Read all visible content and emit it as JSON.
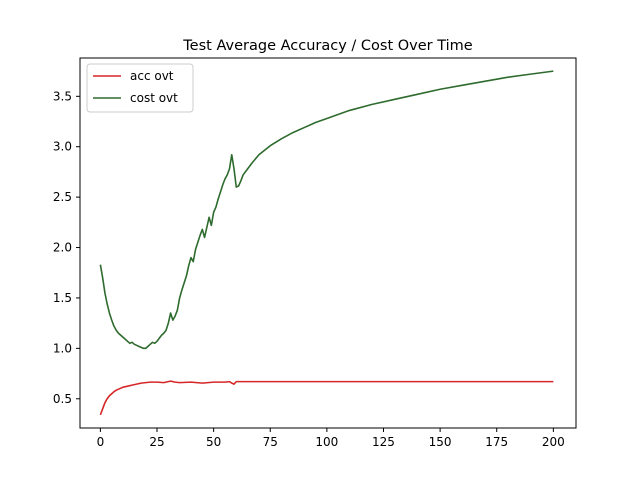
{
  "chart_data": {
    "type": "line",
    "title": "Test Average Accuracy / Cost Over Time",
    "xlabel": "",
    "ylabel": "",
    "xlim": [
      -9,
      210
    ],
    "ylim": [
      0.21,
      3.88
    ],
    "xticks": [
      0,
      25,
      50,
      75,
      100,
      125,
      150,
      175,
      200
    ],
    "yticks": [
      0.5,
      1.0,
      1.5,
      2.0,
      2.5,
      3.0,
      3.5
    ],
    "ytick_labels": [
      "0.5",
      "1.0",
      "1.5",
      "2.0",
      "2.5",
      "3.0",
      "3.5"
    ],
    "grid": false,
    "legend_position": "top-left",
    "series": [
      {
        "name": "acc ovt",
        "color": "#d62728",
        "points": [
          [
            0,
            0.34
          ],
          [
            1,
            0.4
          ],
          [
            2,
            0.46
          ],
          [
            3,
            0.5
          ],
          [
            4,
            0.53
          ],
          [
            5,
            0.55
          ],
          [
            6,
            0.57
          ],
          [
            7,
            0.585
          ],
          [
            8,
            0.595
          ],
          [
            9,
            0.605
          ],
          [
            10,
            0.615
          ],
          [
            12,
            0.625
          ],
          [
            14,
            0.635
          ],
          [
            16,
            0.645
          ],
          [
            18,
            0.655
          ],
          [
            20,
            0.66
          ],
          [
            22,
            0.665
          ],
          [
            25,
            0.665
          ],
          [
            28,
            0.66
          ],
          [
            31,
            0.675
          ],
          [
            33,
            0.665
          ],
          [
            35,
            0.66
          ],
          [
            40,
            0.665
          ],
          [
            45,
            0.655
          ],
          [
            50,
            0.665
          ],
          [
            55,
            0.665
          ],
          [
            57,
            0.67
          ],
          [
            58,
            0.655
          ],
          [
            59,
            0.645
          ],
          [
            60,
            0.67
          ],
          [
            70,
            0.67
          ],
          [
            100,
            0.67
          ],
          [
            150,
            0.67
          ],
          [
            200,
            0.67
          ]
        ]
      },
      {
        "name": "cost ovt",
        "color": "#2e6b2e",
        "points": [
          [
            0,
            1.83
          ],
          [
            1,
            1.7
          ],
          [
            2,
            1.55
          ],
          [
            3,
            1.44
          ],
          [
            4,
            1.35
          ],
          [
            5,
            1.28
          ],
          [
            6,
            1.22
          ],
          [
            7,
            1.18
          ],
          [
            8,
            1.15
          ],
          [
            9,
            1.13
          ],
          [
            10,
            1.11
          ],
          [
            11,
            1.09
          ],
          [
            12,
            1.07
          ],
          [
            13,
            1.05
          ],
          [
            14,
            1.06
          ],
          [
            15,
            1.04
          ],
          [
            16,
            1.03
          ],
          [
            17,
            1.02
          ],
          [
            18,
            1.01
          ],
          [
            19,
            1.0
          ],
          [
            20,
            1.0
          ],
          [
            21,
            1.02
          ],
          [
            22,
            1.04
          ],
          [
            23,
            1.06
          ],
          [
            24,
            1.05
          ],
          [
            25,
            1.07
          ],
          [
            26,
            1.1
          ],
          [
            27,
            1.13
          ],
          [
            28,
            1.15
          ],
          [
            29,
            1.18
          ],
          [
            30,
            1.25
          ],
          [
            31,
            1.35
          ],
          [
            32,
            1.28
          ],
          [
            33,
            1.32
          ],
          [
            34,
            1.38
          ],
          [
            35,
            1.5
          ],
          [
            36,
            1.58
          ],
          [
            37,
            1.65
          ],
          [
            38,
            1.72
          ],
          [
            39,
            1.82
          ],
          [
            40,
            1.9
          ],
          [
            41,
            1.86
          ],
          [
            42,
            1.98
          ],
          [
            43,
            2.05
          ],
          [
            44,
            2.12
          ],
          [
            45,
            2.18
          ],
          [
            46,
            2.1
          ],
          [
            47,
            2.2
          ],
          [
            48,
            2.3
          ],
          [
            49,
            2.22
          ],
          [
            50,
            2.35
          ],
          [
            51,
            2.4
          ],
          [
            52,
            2.48
          ],
          [
            53,
            2.55
          ],
          [
            54,
            2.62
          ],
          [
            55,
            2.68
          ],
          [
            56,
            2.72
          ],
          [
            57,
            2.78
          ],
          [
            58,
            2.92
          ],
          [
            59,
            2.78
          ],
          [
            60,
            2.6
          ],
          [
            61,
            2.61
          ],
          [
            62,
            2.66
          ],
          [
            63,
            2.72
          ],
          [
            65,
            2.78
          ],
          [
            67,
            2.84
          ],
          [
            70,
            2.92
          ],
          [
            75,
            3.01
          ],
          [
            80,
            3.08
          ],
          [
            85,
            3.14
          ],
          [
            90,
            3.19
          ],
          [
            95,
            3.24
          ],
          [
            100,
            3.28
          ],
          [
            110,
            3.36
          ],
          [
            120,
            3.42
          ],
          [
            130,
            3.47
          ],
          [
            140,
            3.52
          ],
          [
            150,
            3.57
          ],
          [
            160,
            3.61
          ],
          [
            170,
            3.65
          ],
          [
            180,
            3.69
          ],
          [
            190,
            3.72
          ],
          [
            200,
            3.75
          ]
        ]
      }
    ]
  }
}
